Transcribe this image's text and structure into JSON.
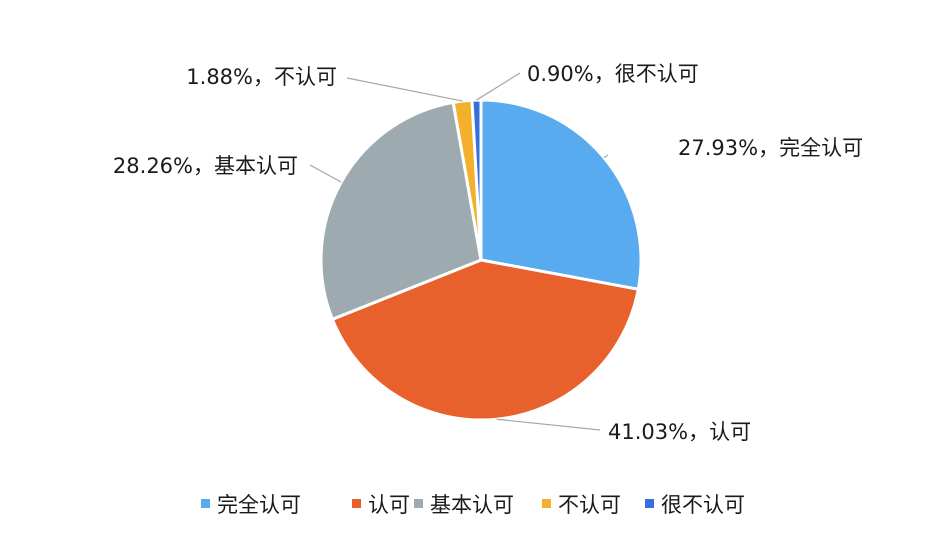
{
  "chart_data": {
    "type": "pie",
    "start_angle": "top, clockwise",
    "categories": [
      "完全认可",
      "认可",
      "基本认可",
      "不认可",
      "很不认可"
    ],
    "values": [
      27.93,
      41.03,
      28.26,
      1.88,
      0.9
    ],
    "data_labels": [
      "27.93%，完全认可",
      "41.03%，认可",
      "28.26%，基本认可",
      "1.88%，不认可",
      "0.90%，很不认可"
    ],
    "colors": [
      "#57abee",
      "#e8602c",
      "#9daab0",
      "#f2b02c",
      "#3570dc"
    ],
    "legend": {
      "position": "bottom",
      "entries": [
        "完全认可",
        "认可",
        "基本认可",
        "不认可",
        "很不认可"
      ]
    }
  }
}
